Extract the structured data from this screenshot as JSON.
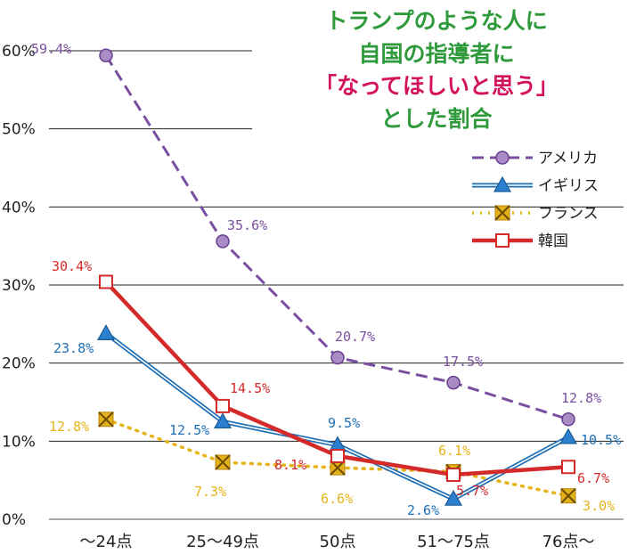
{
  "title_lines": [
    "トランプのような人に",
    "自国の指導者に",
    "「なってほしいと思う」",
    "とした割合"
  ],
  "colors": {
    "title_green": "#2e9a3b",
    "title_magenta": "#d4135d",
    "usa": "#7a4fa0",
    "uk": "#1f6fb6",
    "france": "#e6b318",
    "korea": "#d42a2a"
  },
  "chart_data": {
    "type": "line",
    "categories": [
      "～24点",
      "25～49点",
      "50点",
      "51～75点",
      "76点～"
    ],
    "ylim": [
      0,
      60
    ],
    "yticks": [
      "0%",
      "10%",
      "20%",
      "30%",
      "40%",
      "50%",
      "60%"
    ],
    "series": [
      {
        "key": "usa",
        "name": "アメリカ",
        "values": [
          59.4,
          35.6,
          20.7,
          17.5,
          12.8
        ],
        "labels": [
          "59.4%",
          "35.6%",
          "20.7%",
          "17.5%",
          "12.8%"
        ]
      },
      {
        "key": "uk",
        "name": "イギリス",
        "values": [
          23.8,
          12.5,
          9.5,
          2.6,
          10.5
        ],
        "labels": [
          "23.8%",
          "12.5%",
          "9.5%",
          "2.6%",
          "10.5%"
        ]
      },
      {
        "key": "france",
        "name": "フランス",
        "values": [
          12.8,
          7.3,
          6.6,
          6.1,
          3.0
        ],
        "labels": [
          "12.8%",
          "7.3%",
          "6.6%",
          "6.1%",
          "3.0%"
        ]
      },
      {
        "key": "korea",
        "name": "韓国",
        "values": [
          30.4,
          14.5,
          8.1,
          5.7,
          6.7
        ],
        "labels": [
          "30.4%",
          "14.5%",
          "8.1%",
          "5.7%",
          "6.7%"
        ]
      }
    ]
  }
}
